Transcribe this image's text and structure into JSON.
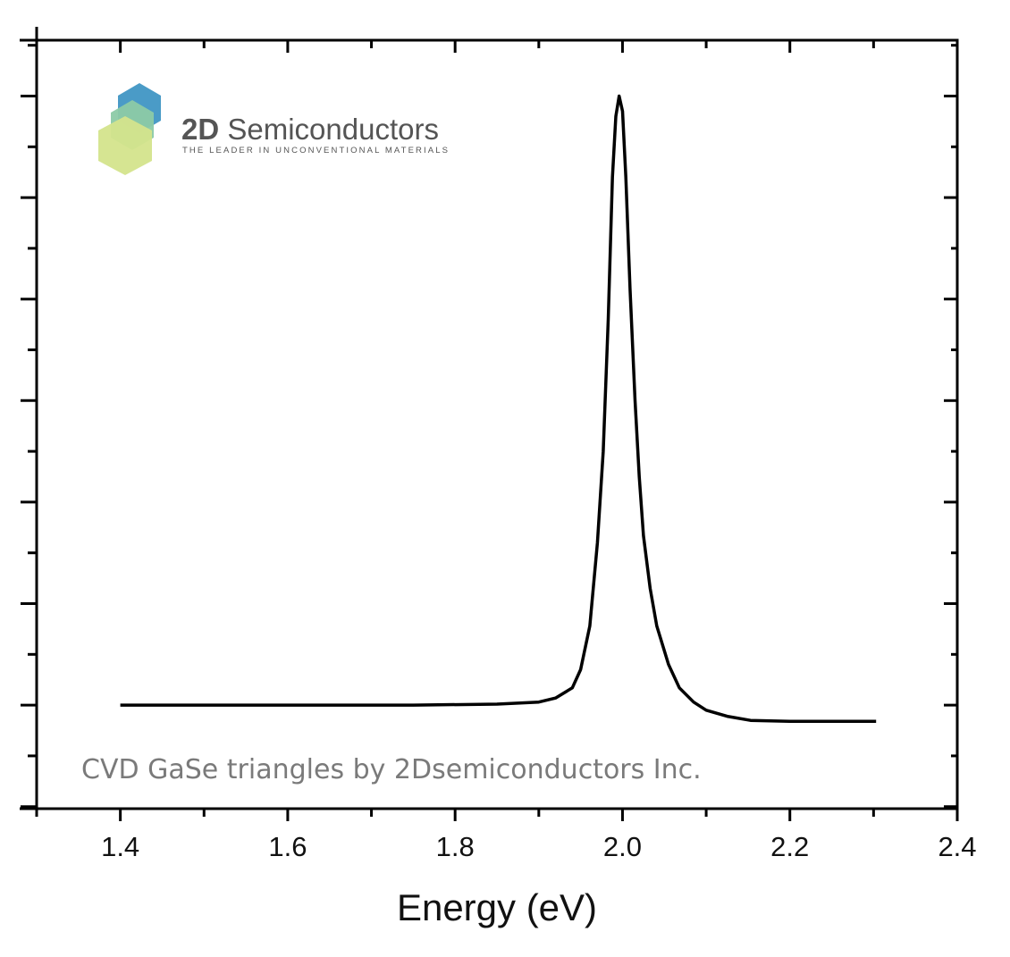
{
  "chart_data": {
    "type": "line",
    "title": "",
    "xlabel": "Energy (eV)",
    "ylabel": "",
    "xlim": [
      1.3,
      2.4
    ],
    "ylim": [
      -1.02,
      6.55
    ],
    "x_ticks": [
      1.4,
      1.6,
      1.8,
      2.0,
      2.2,
      2.4
    ],
    "x_tick_labels": [
      "1.4",
      "1.6",
      "1.8",
      "2.0",
      "2.2",
      "2.4"
    ],
    "y_tick_labels_shown": false,
    "grid": false,
    "line_color": "#000000",
    "annotation": "CVD GaSe triangles by 2Dsemiconductors Inc.",
    "annotation_color": "#7a7a7a",
    "series": [
      {
        "x": [
          1.4,
          1.6,
          1.75,
          1.85,
          1.9,
          1.92,
          1.94,
          1.95,
          1.961,
          1.97,
          1.977,
          1.983,
          1.988,
          1.992,
          1.996,
          2.0,
          2.004,
          2.009,
          2.015,
          2.02,
          2.025,
          2.033,
          2.041,
          2.055,
          2.068,
          2.085,
          2.1,
          2.125,
          2.153,
          2.2,
          2.25,
          2.303
        ],
        "y": [
          0,
          0,
          0,
          0.01,
          0.03,
          0.07,
          0.17,
          0.35,
          0.78,
          1.6,
          2.5,
          3.8,
          5.2,
          5.8,
          6.0,
          5.85,
          5.2,
          4.1,
          3.0,
          2.25,
          1.67,
          1.15,
          0.78,
          0.4,
          0.17,
          0.03,
          -0.05,
          -0.11,
          -0.15,
          -0.16,
          -0.16,
          -0.16
        ]
      }
    ]
  },
  "logo": {
    "brand_bold": "2D",
    "brand_rest": " Semiconductors",
    "tagline": "THE LEADER IN UNCONVENTIONAL MATERIALS",
    "colors": [
      "#4a9bc7",
      "#8ccaa6",
      "#d4e48c"
    ]
  }
}
